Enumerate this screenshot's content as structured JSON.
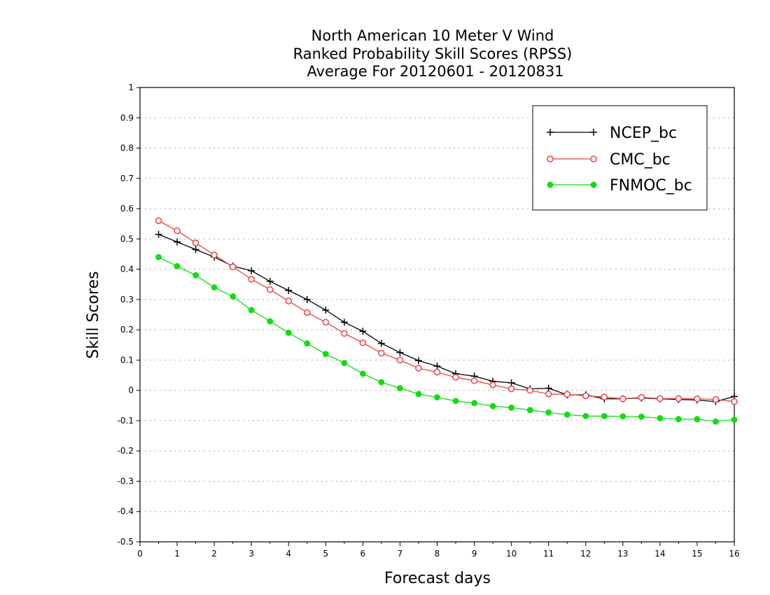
{
  "chart_data": {
    "type": "line",
    "title": [
      "North American 10 Meter V Wind",
      "Ranked Probability Skill Scores (RPSS)",
      "Average For 20120601 - 20120831"
    ],
    "xlabel": "Forecast days",
    "ylabel": "Skill Scores",
    "xlim": [
      0,
      16
    ],
    "ylim": [
      -0.5,
      1
    ],
    "xticks": [
      "0",
      "1",
      "2",
      "3",
      "4",
      "5",
      "6",
      "7",
      "8",
      "9",
      "10",
      "11",
      "12",
      "13",
      "14",
      "15",
      "16"
    ],
    "yticks": [
      "1",
      "0.9",
      "0.8",
      "0.7",
      "0.6",
      "0.5",
      "0.4",
      "0.3",
      "0.2",
      "0.1",
      "0",
      "-0.1",
      "-0.2",
      "-0.3",
      "-0.4",
      "-0.5"
    ],
    "grid": "horizontal-dotted",
    "legend_position": "top-right",
    "x": [
      0.5,
      1,
      1.5,
      2,
      2.5,
      3,
      3.5,
      4,
      4.5,
      5,
      5.5,
      6,
      6.5,
      7,
      7.5,
      8,
      8.5,
      9,
      9.5,
      10,
      10.5,
      11,
      11.5,
      12,
      12.5,
      13,
      13.5,
      14,
      14.5,
      15,
      15.5,
      16
    ],
    "series": [
      {
        "name": "NCEP_bc",
        "color": "#000000",
        "marker": "plus",
        "values": [
          0.515,
          0.49,
          0.465,
          0.44,
          0.41,
          0.395,
          0.36,
          0.33,
          0.3,
          0.265,
          0.225,
          0.195,
          0.155,
          0.125,
          0.098,
          0.08,
          0.055,
          0.047,
          0.03,
          0.025,
          0.005,
          0.007,
          -0.015,
          -0.015,
          -0.028,
          -0.028,
          -0.025,
          -0.028,
          -0.03,
          -0.032,
          -0.037,
          -0.02
        ]
      },
      {
        "name": "CMC_bc",
        "color": "#ee4040",
        "marker": "open-circle",
        "values": [
          0.56,
          0.527,
          0.487,
          0.447,
          0.408,
          0.367,
          0.333,
          0.295,
          0.257,
          0.225,
          0.188,
          0.157,
          0.123,
          0.1,
          0.073,
          0.06,
          0.043,
          0.032,
          0.018,
          0.005,
          0.0,
          -0.012,
          -0.013,
          -0.018,
          -0.022,
          -0.028,
          -0.023,
          -0.027,
          -0.027,
          -0.028,
          -0.03,
          -0.037
        ]
      },
      {
        "name": "FNMOC_bc",
        "color": "#11dd11",
        "marker": "filled-circle",
        "values": [
          0.44,
          0.41,
          0.38,
          0.34,
          0.31,
          0.265,
          0.228,
          0.19,
          0.155,
          0.12,
          0.09,
          0.055,
          0.027,
          0.007,
          -0.012,
          -0.023,
          -0.035,
          -0.042,
          -0.052,
          -0.057,
          -0.065,
          -0.073,
          -0.08,
          -0.085,
          -0.085,
          -0.086,
          -0.087,
          -0.092,
          -0.095,
          -0.095,
          -0.103,
          -0.097
        ]
      }
    ]
  }
}
